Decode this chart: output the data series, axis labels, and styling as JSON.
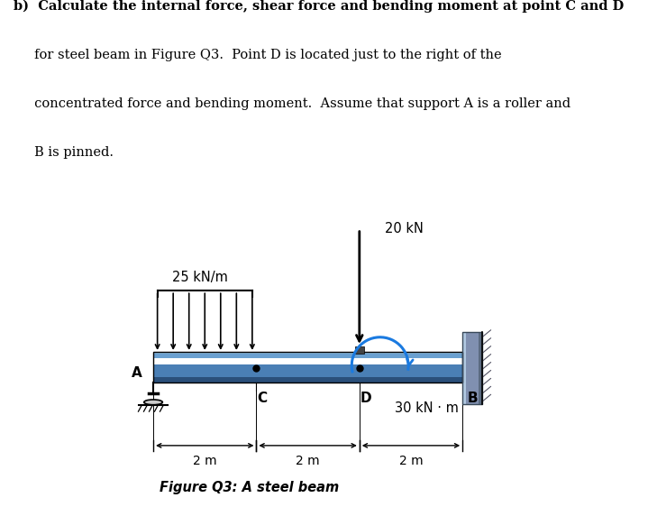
{
  "figure_caption": "Figure Q3: A steel beam",
  "beam_color": "#4a7fb5",
  "beam_highlight": "#6aa0d0",
  "beam_top_highlight": "#90c0e0",
  "beam_dark": "#2a4f7a",
  "wall_color_light": "#8090b0",
  "wall_color_dark": "#5a6a80",
  "background_color": "#ffffff",
  "distributed_load_label": "25 kN/m",
  "point_load_label": "20 kN",
  "moment_label": "30 kN · m",
  "label_A": "A",
  "label_B": "B",
  "label_C": "C",
  "label_D": "D",
  "dim_2m": "2 m",
  "text_line1": "b)  Calculate the internal force, shear force and bending moment at point C and D",
  "text_line2": "     for steel beam in Figure Q3.  Point D is located just to the right of the",
  "text_line3": "     concentrated force and bending moment.  Assume that support A is a roller and",
  "text_line4": "     B is pinned."
}
